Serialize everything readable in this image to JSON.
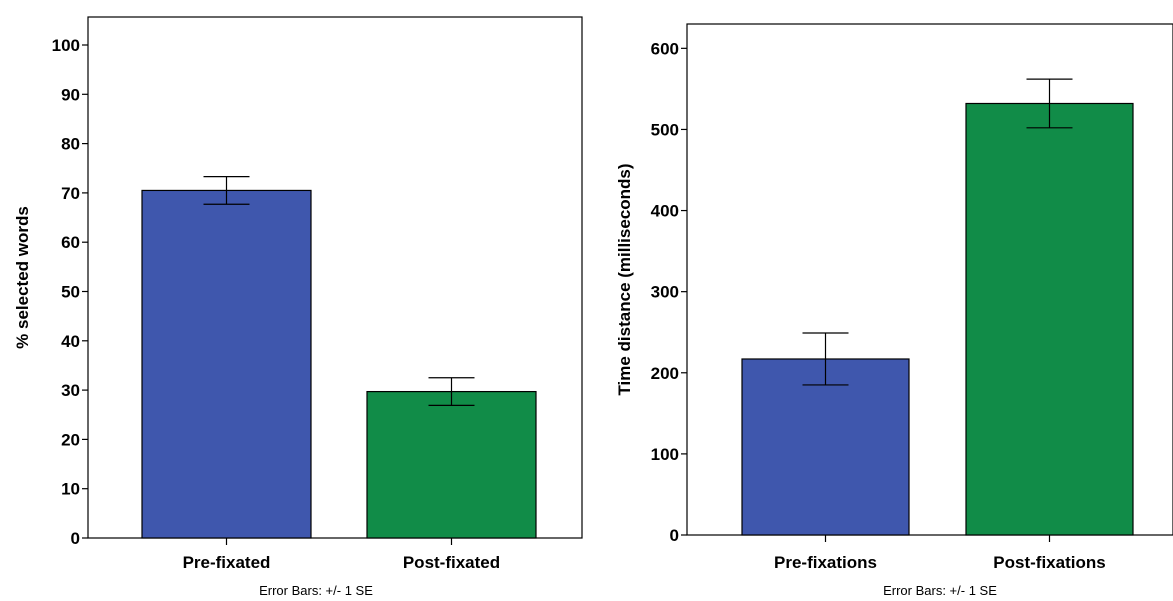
{
  "chart_data": [
    {
      "type": "bar",
      "categories": [
        "Pre-fixated",
        "Post-fixated"
      ],
      "values": [
        70.5,
        29.7
      ],
      "error_bars": [
        {
          "low": 67.7,
          "high": 73.3
        },
        {
          "low": 26.9,
          "high": 32.5
        }
      ],
      "colors": [
        "#3f57ad",
        "#118c48"
      ],
      "title": "",
      "xlabel": "",
      "ylabel": "% selected words",
      "ylim": [
        0,
        100
      ],
      "yticks": [
        0,
        10,
        20,
        30,
        40,
        50,
        60,
        70,
        80,
        90,
        100
      ],
      "grid": false,
      "footnote": "Error Bars: +/- 1 SE"
    },
    {
      "type": "bar",
      "categories": [
        "Pre-fixations",
        "Post-fixations"
      ],
      "values": [
        217,
        532
      ],
      "error_bars": [
        {
          "low": 185,
          "high": 249
        },
        {
          "low": 502,
          "high": 562
        }
      ],
      "colors": [
        "#3f57ad",
        "#118c48"
      ],
      "title": "",
      "xlabel": "",
      "ylabel": "Time distance (milliseconds)",
      "ylim": [
        0,
        630
      ],
      "yticks": [
        0,
        100,
        200,
        300,
        400,
        500,
        600
      ],
      "grid": false,
      "footnote": "Error Bars: +/- 1 SE"
    }
  ]
}
